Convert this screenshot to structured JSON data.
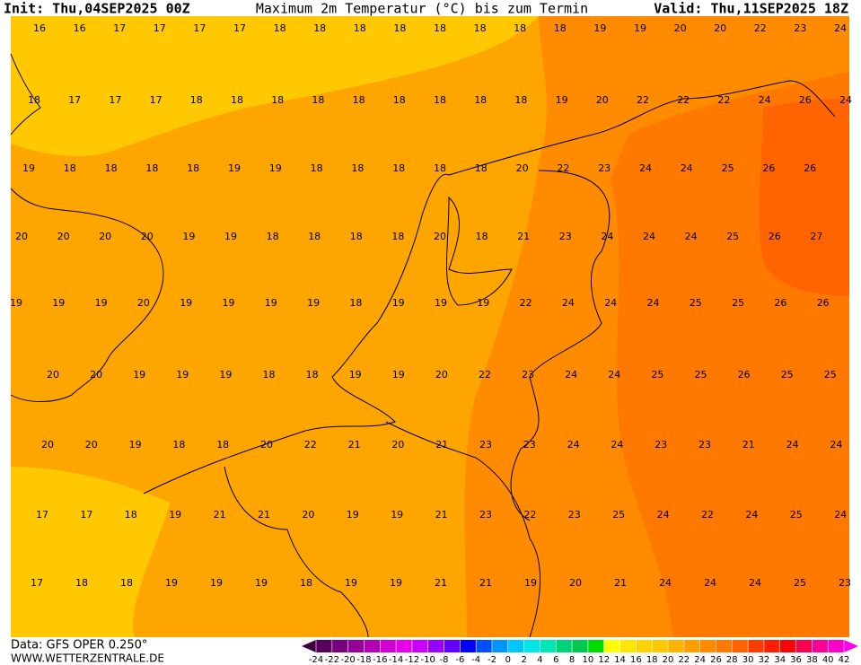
{
  "header": {
    "init": "Init: Thu,04SEP2025 00Z",
    "title": "Maximum 2m Temperatur (°C) bis zum Termin",
    "valid": "Valid: Thu,11SEP2025 18Z"
  },
  "map_values": [
    [
      16,
      16,
      17,
      17,
      17,
      17,
      18,
      18,
      18,
      18,
      18,
      18,
      18,
      18,
      19,
      19,
      20,
      20,
      22,
      23,
      24
    ],
    [
      18,
      17,
      17,
      17,
      18,
      18,
      18,
      18,
      18,
      18,
      18,
      18,
      18,
      19,
      20,
      22,
      22,
      22,
      24,
      26,
      24
    ],
    [
      19,
      18,
      18,
      18,
      18,
      19,
      19,
      18,
      18,
      18,
      18,
      18,
      20,
      22,
      23,
      24,
      24,
      25,
      26,
      26
    ],
    [
      20,
      20,
      20,
      20,
      19,
      19,
      18,
      18,
      18,
      18,
      20,
      18,
      21,
      23,
      24,
      24,
      24,
      25,
      26,
      27
    ],
    [
      19,
      19,
      19,
      20,
      19,
      19,
      19,
      19,
      18,
      19,
      19,
      19,
      22,
      24,
      24,
      24,
      25,
      25,
      26,
      26
    ],
    [
      20,
      20,
      19,
      19,
      19,
      18,
      18,
      19,
      19,
      20,
      22,
      23,
      24,
      24,
      25,
      25,
      26,
      25,
      25
    ],
    [
      20,
      20,
      19,
      18,
      18,
      20,
      22,
      21,
      20,
      21,
      23,
      23,
      24,
      24,
      23,
      23,
      21,
      24,
      24
    ],
    [
      17,
      17,
      18,
      19,
      21,
      21,
      20,
      19,
      19,
      21,
      23,
      22,
      23,
      25,
      24,
      22,
      24,
      25,
      24
    ],
    [
      17,
      18,
      18,
      19,
      19,
      19,
      18,
      19,
      19,
      21,
      21,
      19,
      20,
      21,
      24,
      24,
      24,
      25,
      23
    ]
  ],
  "colorbar": {
    "ticks": [
      -24,
      -22,
      -20,
      -18,
      -16,
      -14,
      -12,
      -10,
      -8,
      -6,
      -4,
      -2,
      0,
      2,
      4,
      6,
      8,
      10,
      12,
      14,
      16,
      18,
      20,
      22,
      24,
      26,
      28,
      30,
      32,
      34,
      36,
      38,
      40,
      42
    ],
    "colors": [
      "#5a005a",
      "#78007d",
      "#960096",
      "#b400b4",
      "#d200d2",
      "#e600e6",
      "#c800ff",
      "#9600ff",
      "#6400ff",
      "#0000ff",
      "#0050ff",
      "#0096ff",
      "#00c8ff",
      "#00e6e6",
      "#00e6b4",
      "#00d278",
      "#00c850",
      "#00dc00",
      "#ffff00",
      "#ffe600",
      "#ffd200",
      "#ffc800",
      "#ffb400",
      "#ffa000",
      "#ff8c00",
      "#ff7800",
      "#ff6400",
      "#ff3c00",
      "#ff1e00",
      "#ff0000",
      "#ff0050",
      "#ff0096",
      "#ff00c8"
    ]
  },
  "footer": {
    "data": "Data: GFS OPER 0.250°",
    "site": "WWW.WETTERZENTRALE.DE"
  }
}
